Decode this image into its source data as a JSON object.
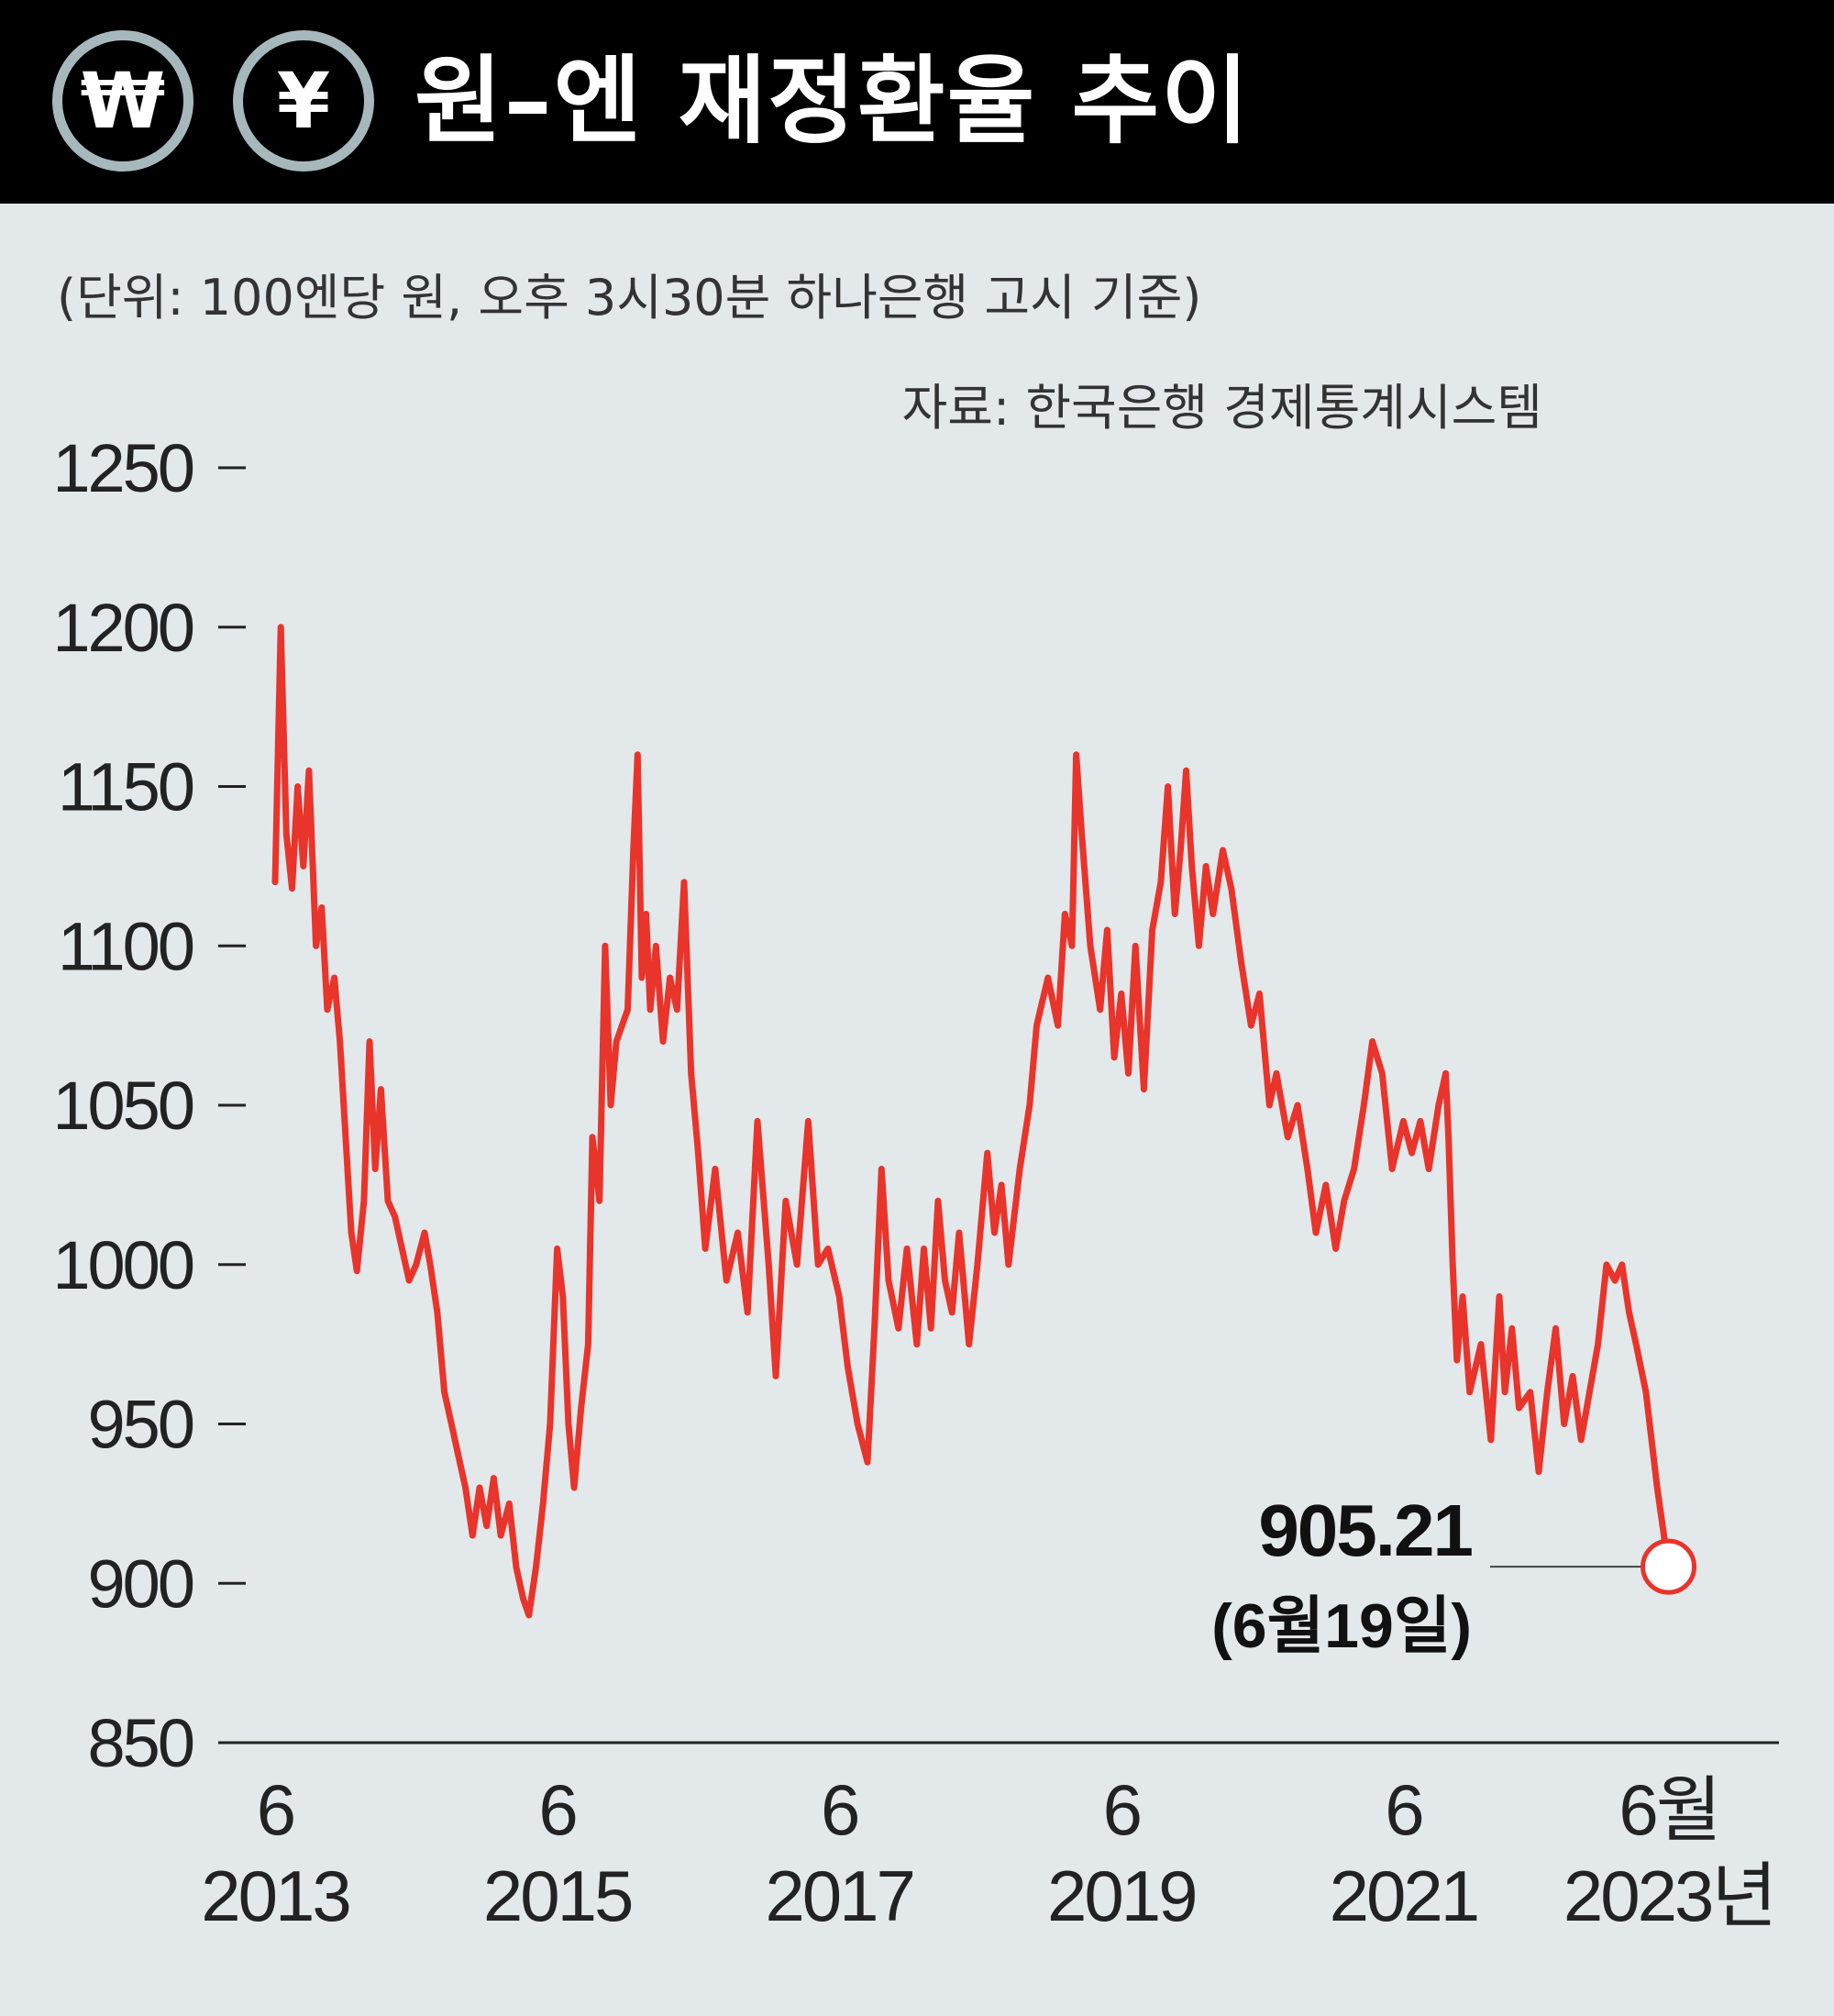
{
  "header": {
    "won_icon": "won-currency-icon",
    "won_symbol": "₩",
    "yen_icon": "yen-currency-icon",
    "yen_symbol": "¥",
    "title": "원–엔 재정환율 추이"
  },
  "notes": {
    "unit": "(단위: 100엔당 원, 오후 3시30분 하나은행 고시 기준)",
    "source": "자료: 한국은행 경제통계시스템"
  },
  "colors": {
    "line": "#e8342a",
    "background": "#e3e8eb",
    "header": "#000000",
    "coin_ring": "#a7b8bd"
  },
  "chart_data": {
    "type": "line",
    "yticks": [
      "1250",
      "1200",
      "1150",
      "1100",
      "1050",
      "1000",
      "950",
      "900",
      "850"
    ],
    "ylim": [
      850,
      1250
    ],
    "xlim": [
      2013.5,
      2023.5
    ],
    "xticks": [
      {
        "month": "6",
        "year": "2013"
      },
      {
        "month": "6",
        "year": "2015"
      },
      {
        "month": "6",
        "year": "2017"
      },
      {
        "month": "6",
        "year": "2019"
      },
      {
        "month": "6",
        "year": "2021"
      },
      {
        "month": "6월",
        "year": "2023년"
      }
    ],
    "series": [
      {
        "points": [
          [
            2013.5,
            1120
          ],
          [
            2013.54,
            1200
          ],
          [
            2013.58,
            1135
          ],
          [
            2013.62,
            1118
          ],
          [
            2013.66,
            1150
          ],
          [
            2013.7,
            1125
          ],
          [
            2013.74,
            1155
          ],
          [
            2013.79,
            1100
          ],
          [
            2013.83,
            1112
          ],
          [
            2013.87,
            1080
          ],
          [
            2013.92,
            1090
          ],
          [
            2013.96,
            1070
          ],
          [
            2014.0,
            1040
          ],
          [
            2014.04,
            1010
          ],
          [
            2014.08,
            998
          ],
          [
            2014.13,
            1020
          ],
          [
            2014.17,
            1070
          ],
          [
            2014.21,
            1030
          ],
          [
            2014.25,
            1055
          ],
          [
            2014.3,
            1020
          ],
          [
            2014.35,
            1015
          ],
          [
            2014.4,
            1005
          ],
          [
            2014.45,
            995
          ],
          [
            2014.5,
            1000
          ],
          [
            2014.56,
            1010
          ],
          [
            2014.6,
            1000
          ],
          [
            2014.65,
            985
          ],
          [
            2014.7,
            960
          ],
          [
            2014.75,
            950
          ],
          [
            2014.8,
            940
          ],
          [
            2014.85,
            930
          ],
          [
            2014.9,
            915
          ],
          [
            2014.95,
            930
          ],
          [
            2015.0,
            918
          ],
          [
            2015.05,
            933
          ],
          [
            2015.1,
            915
          ],
          [
            2015.16,
            925
          ],
          [
            2015.21,
            905
          ],
          [
            2015.26,
            895
          ],
          [
            2015.3,
            890
          ],
          [
            2015.35,
            905
          ],
          [
            2015.4,
            925
          ],
          [
            2015.45,
            950
          ],
          [
            2015.5,
            1005
          ],
          [
            2015.54,
            990
          ],
          [
            2015.58,
            950
          ],
          [
            2015.62,
            930
          ],
          [
            2015.67,
            955
          ],
          [
            2015.72,
            975
          ],
          [
            2015.75,
            1040
          ],
          [
            2015.8,
            1020
          ],
          [
            2015.84,
            1100
          ],
          [
            2015.88,
            1050
          ],
          [
            2015.92,
            1070
          ],
          [
            2016.0,
            1080
          ],
          [
            2016.04,
            1130
          ],
          [
            2016.07,
            1160
          ],
          [
            2016.1,
            1090
          ],
          [
            2016.13,
            1110
          ],
          [
            2016.16,
            1080
          ],
          [
            2016.2,
            1100
          ],
          [
            2016.25,
            1070
          ],
          [
            2016.3,
            1090
          ],
          [
            2016.35,
            1080
          ],
          [
            2016.4,
            1120
          ],
          [
            2016.45,
            1060
          ],
          [
            2016.5,
            1035
          ],
          [
            2016.55,
            1005
          ],
          [
            2016.62,
            1030
          ],
          [
            2016.7,
            995
          ],
          [
            2016.78,
            1010
          ],
          [
            2016.85,
            985
          ],
          [
            2016.92,
            1045
          ],
          [
            2017.0,
            1000
          ],
          [
            2017.05,
            965
          ],
          [
            2017.12,
            1020
          ],
          [
            2017.2,
            1000
          ],
          [
            2017.28,
            1045
          ],
          [
            2017.35,
            1000
          ],
          [
            2017.42,
            1005
          ],
          [
            2017.5,
            990
          ],
          [
            2017.56,
            968
          ],
          [
            2017.63,
            950
          ],
          [
            2017.7,
            938
          ],
          [
            2017.75,
            980
          ],
          [
            2017.8,
            1030
          ],
          [
            2017.85,
            995
          ],
          [
            2017.92,
            980
          ],
          [
            2017.98,
            1005
          ],
          [
            2018.05,
            975
          ],
          [
            2018.1,
            1005
          ],
          [
            2018.15,
            980
          ],
          [
            2018.2,
            1020
          ],
          [
            2018.25,
            995
          ],
          [
            2018.3,
            985
          ],
          [
            2018.35,
            1010
          ],
          [
            2018.42,
            975
          ],
          [
            2018.48,
            1000
          ],
          [
            2018.55,
            1035
          ],
          [
            2018.6,
            1010
          ],
          [
            2018.65,
            1025
          ],
          [
            2018.7,
            1000
          ],
          [
            2018.78,
            1030
          ],
          [
            2018.85,
            1050
          ],
          [
            2018.9,
            1075
          ],
          [
            2018.98,
            1090
          ],
          [
            2019.05,
            1075
          ],
          [
            2019.1,
            1110
          ],
          [
            2019.15,
            1100
          ],
          [
            2019.18,
            1160
          ],
          [
            2019.22,
            1135
          ],
          [
            2019.28,
            1100
          ],
          [
            2019.35,
            1080
          ],
          [
            2019.4,
            1105
          ],
          [
            2019.45,
            1065
          ],
          [
            2019.5,
            1085
          ],
          [
            2019.55,
            1060
          ],
          [
            2019.6,
            1100
          ],
          [
            2019.66,
            1055
          ],
          [
            2019.72,
            1105
          ],
          [
            2019.78,
            1120
          ],
          [
            2019.83,
            1150
          ],
          [
            2019.88,
            1110
          ],
          [
            2019.92,
            1130
          ],
          [
            2019.96,
            1155
          ],
          [
            2020.0,
            1125
          ],
          [
            2020.05,
            1100
          ],
          [
            2020.1,
            1125
          ],
          [
            2020.15,
            1110
          ],
          [
            2020.22,
            1130
          ],
          [
            2020.28,
            1118
          ],
          [
            2020.35,
            1095
          ],
          [
            2020.42,
            1075
          ],
          [
            2020.48,
            1085
          ],
          [
            2020.55,
            1050
          ],
          [
            2020.6,
            1060
          ],
          [
            2020.68,
            1040
          ],
          [
            2020.75,
            1050
          ],
          [
            2020.82,
            1030
          ],
          [
            2020.88,
            1010
          ],
          [
            2020.95,
            1025
          ],
          [
            2021.02,
            1005
          ],
          [
            2021.08,
            1020
          ],
          [
            2021.15,
            1030
          ],
          [
            2021.22,
            1050
          ],
          [
            2021.28,
            1070
          ],
          [
            2021.35,
            1060
          ],
          [
            2021.42,
            1030
          ],
          [
            2021.5,
            1045
          ],
          [
            2021.56,
            1035
          ],
          [
            2021.62,
            1045
          ],
          [
            2021.68,
            1030
          ],
          [
            2021.75,
            1050
          ],
          [
            2021.8,
            1060
          ],
          [
            2021.82,
            1040
          ],
          [
            2021.85,
            1000
          ],
          [
            2021.88,
            970
          ],
          [
            2021.92,
            990
          ],
          [
            2021.97,
            960
          ],
          [
            2022.05,
            975
          ],
          [
            2022.12,
            945
          ],
          [
            2022.18,
            990
          ],
          [
            2022.22,
            960
          ],
          [
            2022.27,
            980
          ],
          [
            2022.32,
            955
          ],
          [
            2022.4,
            960
          ],
          [
            2022.46,
            935
          ],
          [
            2022.52,
            960
          ],
          [
            2022.58,
            980
          ],
          [
            2022.64,
            950
          ],
          [
            2022.7,
            965
          ],
          [
            2022.76,
            945
          ],
          [
            2022.82,
            960
          ],
          [
            2022.88,
            975
          ],
          [
            2022.94,
            1000
          ],
          [
            2023.0,
            995
          ],
          [
            2023.05,
            1000
          ],
          [
            2023.1,
            985
          ],
          [
            2023.15,
            975
          ],
          [
            2023.22,
            960
          ],
          [
            2023.3,
            930
          ],
          [
            2023.38,
            905
          ]
        ]
      }
    ],
    "annotation": {
      "x": 2023.38,
      "y": 905.21,
      "value": "905.21",
      "date": "(6월19일)"
    }
  }
}
